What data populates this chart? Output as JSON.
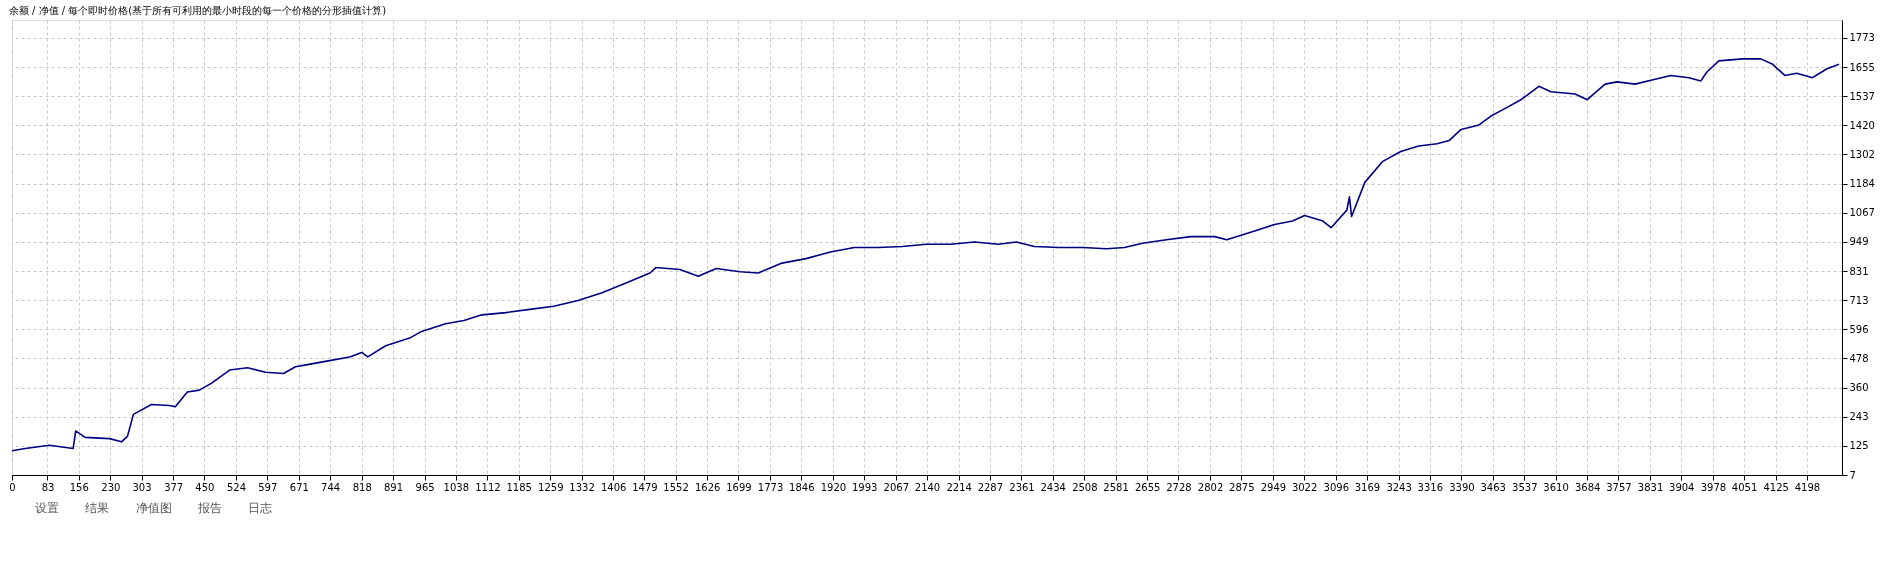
{
  "chart_data": {
    "type": "line",
    "title": "余额 / 净值 / 每个即时价格(基于所有可利用的最小时段的每一个价格的分形插值计算)",
    "x": [
      0,
      31,
      87,
      143,
      149,
      171,
      228,
      256,
      270,
      284,
      326,
      368,
      382,
      410,
      438,
      466,
      509,
      551,
      593,
      635,
      663,
      691,
      733,
      790,
      818,
      832,
      874,
      930,
      958,
      1014,
      1057,
      1099,
      1155,
      1211,
      1267,
      1324,
      1380,
      1436,
      1492,
      1506,
      1562,
      1605,
      1647,
      1703,
      1745,
      1801,
      1857,
      1914,
      1970,
      2026,
      2082,
      2138,
      2195,
      2251,
      2307,
      2349,
      2391,
      2448,
      2504,
      2560,
      2602,
      2644,
      2700,
      2757,
      2813,
      2841,
      2897,
      2953,
      2995,
      3023,
      3066,
      3085,
      3122,
      3128,
      3133,
      3164,
      3206,
      3248,
      3290,
      3333,
      3361,
      3389,
      3431,
      3459,
      3487,
      3529,
      3571,
      3599,
      3656,
      3684,
      3726,
      3754,
      3796,
      3838,
      3880,
      3922,
      3950,
      3964,
      3992,
      4048,
      4090,
      4118,
      4146,
      4174,
      4211,
      4245,
      4273
    ],
    "series": [
      {
        "color": "#000080",
        "values": [
          105,
          114,
          127,
          114,
          185,
          159,
          154,
          141,
          163,
          252,
          292,
          288,
          283,
          342,
          350,
          377,
          431,
          440,
          422,
          417,
          444,
          453,
          466,
          484,
          502,
          484,
          529,
          560,
          587,
          618,
          631,
          654,
          663,
          676,
          689,
          712,
          743,
          783,
          823,
          845,
          837,
          810,
          841,
          828,
          823,
          863,
          881,
          908,
          926,
          926,
          930,
          939,
          939,
          948,
          939,
          948,
          930,
          926,
          926,
          921,
          926,
          943,
          957,
          970,
          970,
          957,
          988,
          1019,
          1033,
          1055,
          1033,
          1006,
          1077,
          1131,
          1051,
          1189,
          1274,
          1314,
          1336,
          1345,
          1358,
          1403,
          1421,
          1457,
          1483,
          1523,
          1577,
          1555,
          1546,
          1523,
          1586,
          1595,
          1586,
          1604,
          1621,
          1612,
          1599,
          1635,
          1680,
          1688,
          1688,
          1666,
          1621,
          1630,
          1612,
          1648,
          1666
        ]
      }
    ],
    "xlim": [
      0,
      4280
    ],
    "ylim": [
      7,
      1845
    ],
    "xticks": [
      0,
      83,
      156,
      230,
      303,
      377,
      450,
      524,
      597,
      671,
      744,
      818,
      891,
      965,
      1038,
      1112,
      1185,
      1259,
      1332,
      1406,
      1479,
      1552,
      1626,
      1699,
      1773,
      1846,
      1920,
      1993,
      2067,
      2140,
      2214,
      2287,
      2361,
      2434,
      2508,
      2581,
      2655,
      2728,
      2802,
      2875,
      2949,
      3022,
      3096,
      3169,
      3243,
      3316,
      3390,
      3463,
      3537,
      3610,
      3684,
      3757,
      3831,
      3904,
      3978,
      4051,
      4125,
      4198
    ],
    "yticks": [
      7,
      125,
      243,
      360,
      478,
      596,
      713,
      831,
      949,
      1067,
      1184,
      1302,
      1420,
      1537,
      1655,
      1773
    ],
    "grid": true,
    "line_style": "solid",
    "marker": "none",
    "annotations": [
      "设置",
      "结果",
      "净值图",
      "报告",
      "日志"
    ]
  }
}
